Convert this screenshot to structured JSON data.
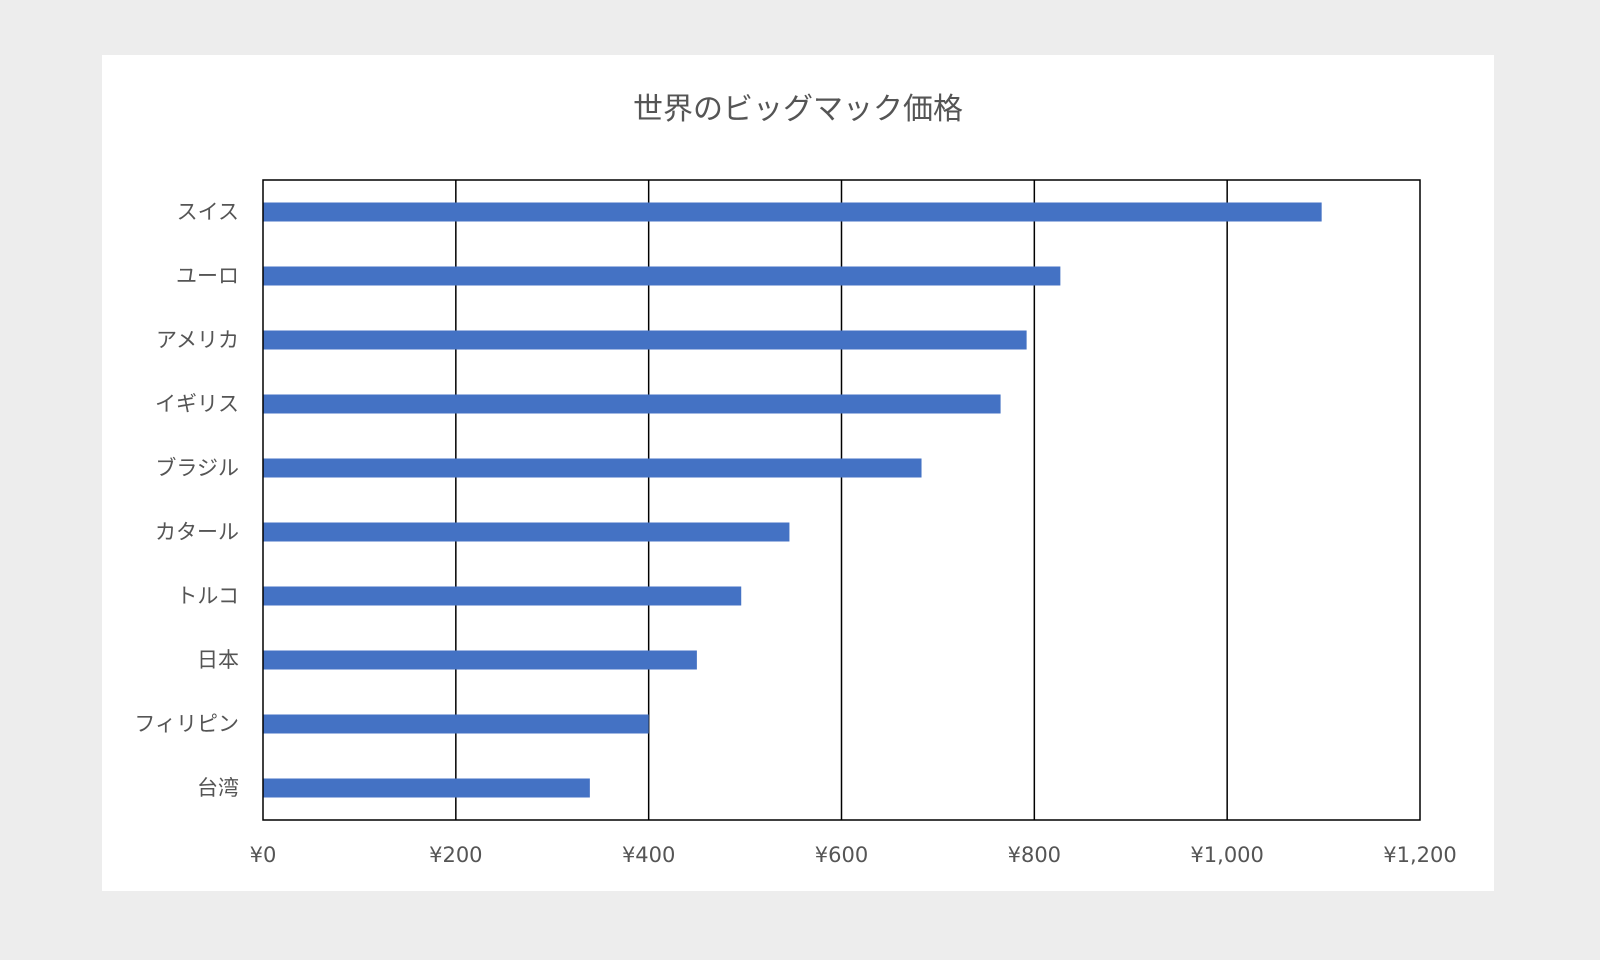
{
  "chart_data": {
    "type": "bar",
    "orientation": "horizontal",
    "title": "世界のビッグマック価格",
    "categories": [
      "スイス",
      "ユーロ",
      "アメリカ",
      "イギリス",
      "ブラジル",
      "カタール",
      "トルコ",
      "日本",
      "フィリピン",
      "台湾"
    ],
    "values": [
      1098,
      827,
      792,
      765,
      683,
      546,
      496,
      450,
      400,
      339
    ],
    "x_ticks": [
      "¥0",
      "¥200",
      "¥400",
      "¥600",
      "¥800",
      "¥1,000",
      "¥1,200"
    ],
    "xlim": [
      0,
      1200
    ],
    "grid": true,
    "legend": "none",
    "bar_color": "#4472c4"
  }
}
